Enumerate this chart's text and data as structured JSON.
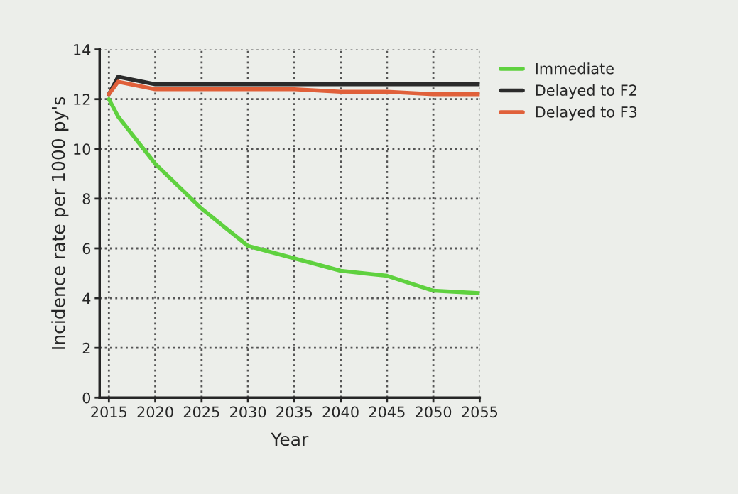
{
  "chart_data": {
    "type": "line",
    "xlabel": "Year",
    "ylabel": "Incidence rate per 1000 py's",
    "x": [
      2015,
      2016,
      2020,
      2025,
      2030,
      2035,
      2040,
      2045,
      2050,
      2055
    ],
    "series": [
      {
        "name": "Immediate",
        "color": "#5fd13f",
        "values": [
          12.0,
          11.3,
          9.4,
          7.6,
          6.1,
          5.6,
          5.1,
          4.9,
          4.3,
          4.2
        ]
      },
      {
        "name": "Delayed to F2",
        "color": "#2b2b2b",
        "values": [
          12.2,
          12.9,
          12.6,
          12.6,
          12.6,
          12.6,
          12.6,
          12.6,
          12.6,
          12.6
        ]
      },
      {
        "name": "Delayed to F3",
        "color": "#e0603a",
        "values": [
          12.2,
          12.7,
          12.4,
          12.4,
          12.4,
          12.4,
          12.3,
          12.3,
          12.2,
          12.2
        ]
      }
    ],
    "xlim": [
      2014,
      2055
    ],
    "xticks": [
      2015,
      2020,
      2025,
      2030,
      2035,
      2040,
      2045,
      2050,
      2055
    ],
    "ylim": [
      0,
      14
    ],
    "yticks": [
      0,
      2,
      4,
      6,
      8,
      10,
      12,
      14
    ],
    "grid": true,
    "legend": "top right",
    "marker": "none",
    "line_style": "solid"
  }
}
